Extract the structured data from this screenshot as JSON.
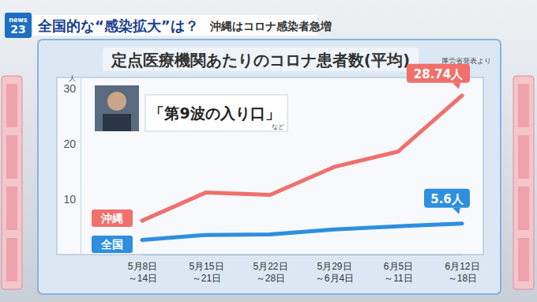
{
  "header": {
    "logo": "news 23",
    "headline": "全国的な“感染拡大”は？",
    "subheadline": "沖縄はコロナ感染者急増"
  },
  "chart_data": {
    "type": "line",
    "title": "定点医療機関あたりのコロナ患者数(平均)",
    "source": "厚労省発表より",
    "annotations": [
      "「第9波の入り口」",
      "など"
    ],
    "ylabel": "人",
    "categories": [
      "5月8日～14日",
      "5月15日～21日",
      "5月22日～28日",
      "5月29日～6月4日",
      "6月5日～11日",
      "6月12日～18日"
    ],
    "series": [
      {
        "name": "沖縄",
        "color": "#f0706c",
        "values": [
          6.13,
          11.23,
          10.78,
          15.83,
          18.6,
          28.74
        ],
        "value_labels": [
          null,
          null,
          null,
          null,
          null,
          "28.74人"
        ]
      },
      {
        "name": "全国",
        "color": "#2f8fde",
        "values": [
          2.63,
          3.55,
          3.63,
          4.55,
          5.11,
          5.6
        ],
        "value_labels": [
          null,
          null,
          null,
          null,
          null,
          "5.6人"
        ]
      }
    ],
    "ylim": [
      0,
      32
    ],
    "yticks": [
      10,
      20,
      30
    ],
    "grid": false,
    "data_labels": true
  }
}
